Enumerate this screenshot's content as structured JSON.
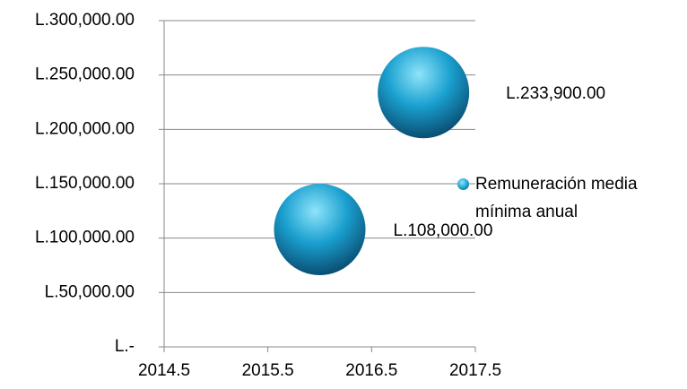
{
  "chart_data": {
    "type": "scatter",
    "series": [
      {
        "name": "Remuneración media mínima anual",
        "color": "#1aa0cf",
        "x": [
          2016,
          2017
        ],
        "values": [
          108000,
          233900
        ],
        "value_labels": [
          "L.108,000.00",
          "L.233,900.00"
        ]
      }
    ],
    "xlim": [
      2014.5,
      2017.5
    ],
    "xticks": [
      2014.5,
      2015.5,
      2016.5,
      2017.5
    ],
    "ylim": [
      0,
      300000
    ],
    "yticks": [
      {
        "value": 0,
        "label": "L.-"
      },
      {
        "value": 50000,
        "label": "L.50,000.00"
      },
      {
        "value": 100000,
        "label": "L.100,000.00"
      },
      {
        "value": 150000,
        "label": "L.150,000.00"
      },
      {
        "value": 200000,
        "label": "L.200,000.00"
      },
      {
        "value": 250000,
        "label": "L.250,000.00"
      },
      {
        "value": 300000,
        "label": "L.300,000.00"
      }
    ],
    "grid": true,
    "legend": "right"
  }
}
